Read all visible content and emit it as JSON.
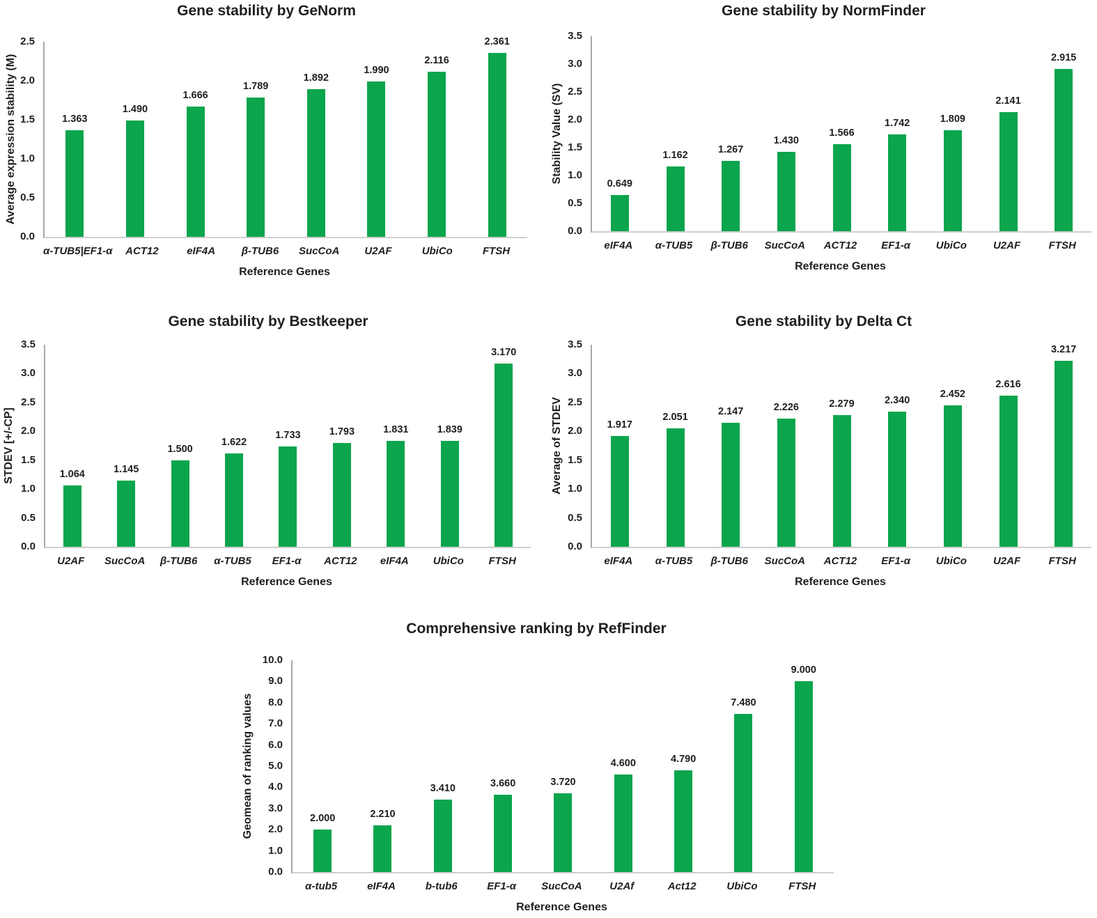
{
  "figure": {
    "bar_color": "#0aa54c",
    "text_color": "#1f1f1f",
    "y_axis_line_color": "#a8a8a8",
    "x_axis_line_color": "#cfcfcf",
    "background": "#ffffff"
  },
  "chart_data": [
    {
      "id": "genorm",
      "type": "bar",
      "title": "Gene stability by GeNorm",
      "xlabel": "Reference Genes",
      "ylabel": "Average expression stability (M)",
      "ylim": [
        0,
        2.5
      ],
      "ytick_step": 0.5,
      "yticks": [
        "2.5",
        "2.0",
        "1.5",
        "1.0",
        "0.5",
        "0.0"
      ],
      "grid": false,
      "legend": "none",
      "categories": [
        "α-TUB5|EF1-α",
        "ACT12",
        "eIF4A",
        "β-TUB6",
        "SucCoA",
        "U2AF",
        "UbiCo",
        "FTSH"
      ],
      "values": [
        1.363,
        1.49,
        1.666,
        1.789,
        1.892,
        1.99,
        2.116,
        2.361
      ],
      "value_labels": [
        "1.363",
        "1.490",
        "1.666",
        "1.789",
        "1.892",
        "1.990",
        "2.116",
        "2.361"
      ]
    },
    {
      "id": "normfinder",
      "type": "bar",
      "title": "Gene stability by NormFinder",
      "xlabel": "Reference Genes",
      "ylabel": "Stability Value (SV)",
      "ylim": [
        0,
        3.5
      ],
      "ytick_step": 0.5,
      "yticks": [
        "3.5",
        "3.0",
        "2.5",
        "2.0",
        "1.5",
        "1.0",
        "0.5",
        "0.0"
      ],
      "grid": false,
      "legend": "none",
      "categories": [
        "eIF4A",
        "α-TUB5",
        "β-TUB6",
        "SucCoA",
        "ACT12",
        "EF1-α",
        "UbiCo",
        "U2AF",
        "FTSH"
      ],
      "values": [
        0.649,
        1.162,
        1.267,
        1.43,
        1.566,
        1.742,
        1.809,
        2.141,
        2.915
      ],
      "value_labels": [
        "0.649",
        "1.162",
        "1.267",
        "1.430",
        "1.566",
        "1.742",
        "1.809",
        "2.141",
        "2.915"
      ]
    },
    {
      "id": "bestkeeper",
      "type": "bar",
      "title": "Gene stability by Bestkeeper",
      "xlabel": "Reference Genes",
      "ylabel": "STDEV [+/-CP]",
      "ylim": [
        0,
        3.5
      ],
      "ytick_step": 0.5,
      "yticks": [
        "3.5",
        "3.0",
        "2.5",
        "2.0",
        "1.5",
        "1.0",
        "0.5",
        "0.0"
      ],
      "grid": false,
      "legend": "none",
      "categories": [
        "U2AF",
        "SucCoA",
        "β-TUB6",
        "α-TUB5",
        "EF1-α",
        "ACT12",
        "eIF4A",
        "UbiCo",
        "FTSH"
      ],
      "values": [
        1.064,
        1.145,
        1.5,
        1.622,
        1.733,
        1.793,
        1.831,
        1.839,
        3.17
      ],
      "value_labels": [
        "1.064",
        "1.145",
        "1.500",
        "1.622",
        "1.733",
        "1.793",
        "1.831",
        "1.839",
        "3.170"
      ]
    },
    {
      "id": "deltact",
      "type": "bar",
      "title": "Gene stability by Delta Ct",
      "xlabel": "Reference Genes",
      "ylabel": "Average of STDEV",
      "ylim": [
        0,
        3.5
      ],
      "ytick_step": 0.5,
      "yticks": [
        "3.5",
        "3.0",
        "2.5",
        "2.0",
        "1.5",
        "1.0",
        "0.5",
        "0.0"
      ],
      "grid": false,
      "legend": "none",
      "categories": [
        "eIF4A",
        "α-TUB5",
        "β-TUB6",
        "SucCoA",
        "ACT12",
        "EF1-α",
        "UbiCo",
        "U2AF",
        "FTSH"
      ],
      "values": [
        1.917,
        2.051,
        2.147,
        2.226,
        2.279,
        2.34,
        2.452,
        2.616,
        3.217
      ],
      "value_labels": [
        "1.917",
        "2.051",
        "2.147",
        "2.226",
        "2.279",
        "2.340",
        "2.452",
        "2.616",
        "3.217"
      ]
    },
    {
      "id": "reffinder",
      "type": "bar",
      "title": "Comprehensive ranking by RefFinder",
      "xlabel": "Reference Genes",
      "ylabel": "Geomean of ranking values",
      "ylim": [
        0,
        10.0
      ],
      "ytick_step": 1.0,
      "yticks": [
        "10.0",
        "9.0",
        "8.0",
        "7.0",
        "6.0",
        "5.0",
        "4.0",
        "3.0",
        "2.0",
        "1.0",
        "0.0"
      ],
      "grid": false,
      "legend": "none",
      "categories": [
        "α-tub5",
        "eIF4A",
        "b-tub6",
        "EF1-α",
        "SucCoA",
        "U2Af",
        "Act12",
        "UbiCo",
        "FTSH"
      ],
      "values": [
        2.0,
        2.21,
        3.41,
        3.66,
        3.72,
        4.6,
        4.79,
        7.48,
        9.0
      ],
      "value_labels": [
        "2.000",
        "2.210",
        "3.410",
        "3.660",
        "3.720",
        "4.600",
        "4.790",
        "7.480",
        "9.000"
      ]
    }
  ]
}
